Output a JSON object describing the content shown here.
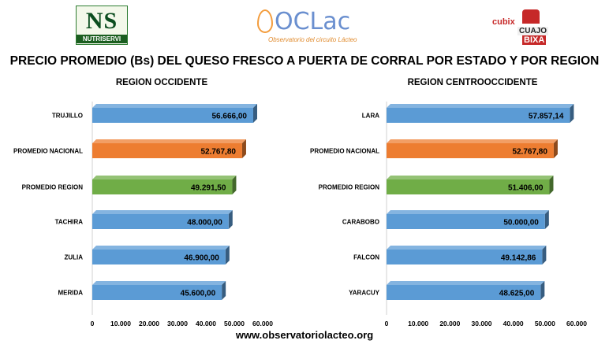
{
  "logos": {
    "left": {
      "mark": "NS",
      "word": "NUTRISERVI"
    },
    "center": {
      "name": "OCLac",
      "subtitle": "Observatorio del circuito Lácteo"
    },
    "right": {
      "brand": "cubix",
      "line1": "CUAJO",
      "line2": "BIXA"
    }
  },
  "page_title": "PRECIO PROMEDIO (Bs) DEL QUESO FRESCO A PUERTA DE CORRAL POR ESTADO Y POR REGION",
  "footer": "www.observatoriolacteo.org",
  "colors": {
    "blue": "#5b9bd5",
    "orange": "#ed7d31",
    "green": "#70ad47"
  },
  "chart_data": [
    {
      "type": "bar",
      "orientation": "horizontal",
      "title": "REGION OCCIDENTE",
      "categories": [
        "TRUJILLO",
        "PROMEDIO NACIONAL",
        "PROMEDIO REGION",
        "TACHIRA",
        "ZULIA",
        "MERIDA"
      ],
      "values": [
        56666.0,
        52767.8,
        49291.5,
        48000.0,
        46900.0,
        45600.0
      ],
      "value_labels": [
        "56.666,00",
        "52.767,80",
        "49.291,50",
        "48.000,00",
        "46.900,00",
        "45.600,00"
      ],
      "bar_colors": [
        "#5b9bd5",
        "#ed7d31",
        "#70ad47",
        "#5b9bd5",
        "#5b9bd5",
        "#5b9bd5"
      ],
      "xlim": [
        0,
        60000
      ],
      "x_ticks": [
        0,
        10000,
        20000,
        30000,
        40000,
        50000,
        60000
      ],
      "x_tick_labels": [
        "0",
        "10.000",
        "20.000",
        "30.000",
        "40.000",
        "50.000",
        "60.000"
      ],
      "grid": false
    },
    {
      "type": "bar",
      "orientation": "horizontal",
      "title": "REGION CENTROOCCIDENTE",
      "categories": [
        "LARA",
        "PROMEDIO NACIONAL",
        "PROMEDIO REGION",
        "CARABOBO",
        "FALCON",
        "YARACUY"
      ],
      "values": [
        57857.14,
        52767.8,
        51406.0,
        50000.0,
        49142.86,
        48625.0
      ],
      "value_labels": [
        "57.857,14",
        "52.767,80",
        "51.406,00",
        "50.000,00",
        "49.142,86",
        "48.625,00"
      ],
      "bar_colors": [
        "#5b9bd5",
        "#ed7d31",
        "#70ad47",
        "#5b9bd5",
        "#5b9bd5",
        "#5b9bd5"
      ],
      "xlim": [
        0,
        60000
      ],
      "x_ticks": [
        0,
        10000,
        20000,
        30000,
        40000,
        50000,
        60000
      ],
      "x_tick_labels": [
        "0",
        "10.000",
        "20.000",
        "30.000",
        "40.000",
        "50.000",
        "60.000"
      ],
      "grid": false
    }
  ]
}
